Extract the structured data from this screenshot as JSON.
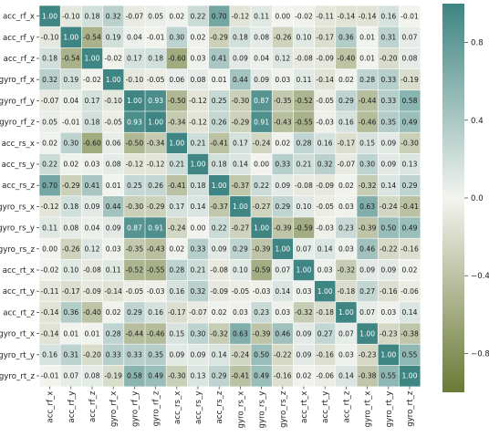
{
  "chart_data": {
    "type": "heatmap",
    "title": "",
    "xlabel": "",
    "ylabel": "",
    "labels": [
      "acc_rf_x",
      "acc_rf_y",
      "acc_rf_z",
      "gyro_rf_x",
      "gyro_rf_y",
      "gyro_rf_z",
      "acc_rs_x",
      "acc_rs_y",
      "acc_rs_z",
      "gyro_rs_x",
      "gyro_rs_y",
      "gyro_rs_z",
      "acc_rt_x",
      "acc_rt_y",
      "acc_rt_z",
      "gyro_rt_x",
      "gyro_rt_y",
      "gyro_rt_z"
    ],
    "matrix": [
      [
        1.0,
        -0.1,
        0.18,
        0.32,
        -0.07,
        0.05,
        0.02,
        0.22,
        0.7,
        -0.12,
        0.11,
        -0.0,
        -0.02,
        -0.11,
        -0.14,
        -0.14,
        0.16,
        -0.01
      ],
      [
        -0.1,
        1.0,
        -0.54,
        0.19,
        0.04,
        -0.01,
        0.3,
        0.02,
        -0.29,
        0.18,
        0.08,
        -0.26,
        0.1,
        -0.17,
        0.36,
        0.01,
        0.31,
        0.07
      ],
      [
        0.18,
        -0.54,
        1.0,
        -0.02,
        0.17,
        0.18,
        -0.6,
        0.03,
        0.41,
        0.09,
        0.04,
        0.12,
        -0.08,
        -0.09,
        -0.4,
        0.01,
        -0.2,
        0.08
      ],
      [
        0.32,
        0.19,
        -0.02,
        1.0,
        -0.1,
        -0.05,
        0.06,
        0.08,
        0.01,
        0.44,
        0.09,
        0.03,
        0.11,
        -0.14,
        0.02,
        0.28,
        0.33,
        -0.19
      ],
      [
        -0.07,
        0.04,
        0.17,
        -0.1,
        1.0,
        0.93,
        -0.5,
        -0.12,
        0.25,
        -0.3,
        0.87,
        -0.35,
        -0.52,
        -0.05,
        0.29,
        -0.44,
        0.33,
        0.58
      ],
      [
        0.05,
        -0.01,
        0.18,
        -0.05,
        0.93,
        1.0,
        -0.34,
        -0.12,
        0.26,
        -0.29,
        0.91,
        -0.43,
        -0.55,
        -0.03,
        0.16,
        -0.46,
        0.35,
        0.49
      ],
      [
        0.02,
        0.3,
        -0.6,
        0.06,
        -0.5,
        -0.34,
        1.0,
        0.21,
        -0.41,
        0.17,
        -0.24,
        0.02,
        0.28,
        0.16,
        -0.17,
        0.15,
        0.09,
        -0.3
      ],
      [
        0.22,
        0.02,
        0.03,
        0.08,
        -0.12,
        -0.12,
        0.21,
        1.0,
        0.18,
        0.14,
        -0.0,
        0.33,
        0.21,
        0.32,
        -0.07,
        0.3,
        0.09,
        0.13
      ],
      [
        0.7,
        -0.29,
        0.41,
        0.01,
        0.25,
        0.26,
        -0.41,
        0.18,
        1.0,
        -0.37,
        0.22,
        0.09,
        -0.08,
        -0.09,
        0.02,
        -0.32,
        0.14,
        0.29
      ],
      [
        -0.12,
        0.18,
        0.09,
        0.44,
        -0.3,
        -0.29,
        0.17,
        0.14,
        -0.37,
        1.0,
        -0.27,
        0.29,
        0.1,
        -0.05,
        0.03,
        0.63,
        -0.24,
        -0.41
      ],
      [
        0.11,
        0.08,
        0.04,
        0.09,
        0.87,
        0.91,
        -0.24,
        -0.0,
        0.22,
        -0.27,
        1.0,
        -0.39,
        -0.59,
        -0.03,
        0.23,
        -0.39,
        0.5,
        0.49
      ],
      [
        -0.0,
        -0.26,
        0.12,
        0.03,
        -0.35,
        -0.43,
        0.02,
        0.33,
        0.09,
        0.29,
        -0.39,
        1.0,
        0.07,
        0.14,
        0.03,
        0.46,
        -0.22,
        -0.16
      ],
      [
        -0.02,
        0.1,
        -0.08,
        0.11,
        -0.52,
        -0.55,
        0.28,
        0.21,
        -0.08,
        0.1,
        -0.59,
        0.07,
        1.0,
        0.03,
        -0.32,
        0.09,
        0.09,
        0.02
      ],
      [
        -0.11,
        -0.17,
        -0.09,
        -0.14,
        -0.05,
        -0.03,
        0.16,
        0.32,
        -0.09,
        -0.05,
        -0.03,
        0.14,
        0.03,
        1.0,
        -0.18,
        0.27,
        -0.16,
        -0.06
      ],
      [
        -0.14,
        0.36,
        -0.4,
        0.02,
        0.29,
        0.16,
        -0.17,
        -0.07,
        0.02,
        0.03,
        0.23,
        0.03,
        -0.32,
        -0.18,
        1.0,
        0.07,
        0.03,
        0.14
      ],
      [
        -0.14,
        0.01,
        0.01,
        0.28,
        -0.44,
        -0.46,
        0.15,
        0.3,
        -0.32,
        0.63,
        -0.39,
        0.46,
        0.09,
        0.27,
        0.07,
        1.0,
        -0.23,
        -0.38
      ],
      [
        0.16,
        0.31,
        -0.2,
        0.33,
        0.33,
        0.35,
        0.09,
        0.09,
        0.14,
        -0.24,
        0.5,
        -0.22,
        0.09,
        -0.16,
        0.03,
        -0.23,
        1.0,
        0.55
      ],
      [
        -0.01,
        0.07,
        0.08,
        -0.19,
        0.58,
        0.49,
        -0.3,
        0.13,
        0.29,
        -0.41,
        0.49,
        -0.16,
        0.02,
        -0.06,
        0.14,
        -0.38,
        0.55,
        1.0
      ]
    ],
    "vmin": -1.0,
    "vmax": 1.0,
    "colorbar_ticks": [
      "0.8",
      "0.4",
      "0.0",
      "−0.4",
      "−0.8"
    ],
    "colorbar_tick_values": [
      0.8,
      0.4,
      0.0,
      -0.4,
      -0.8
    ],
    "annotated": true,
    "grid": false,
    "legend": "colorbar-right",
    "colors": {
      "negative": "#6b7a36",
      "center": "#f3f4ef",
      "positive": "#3e8583"
    }
  }
}
